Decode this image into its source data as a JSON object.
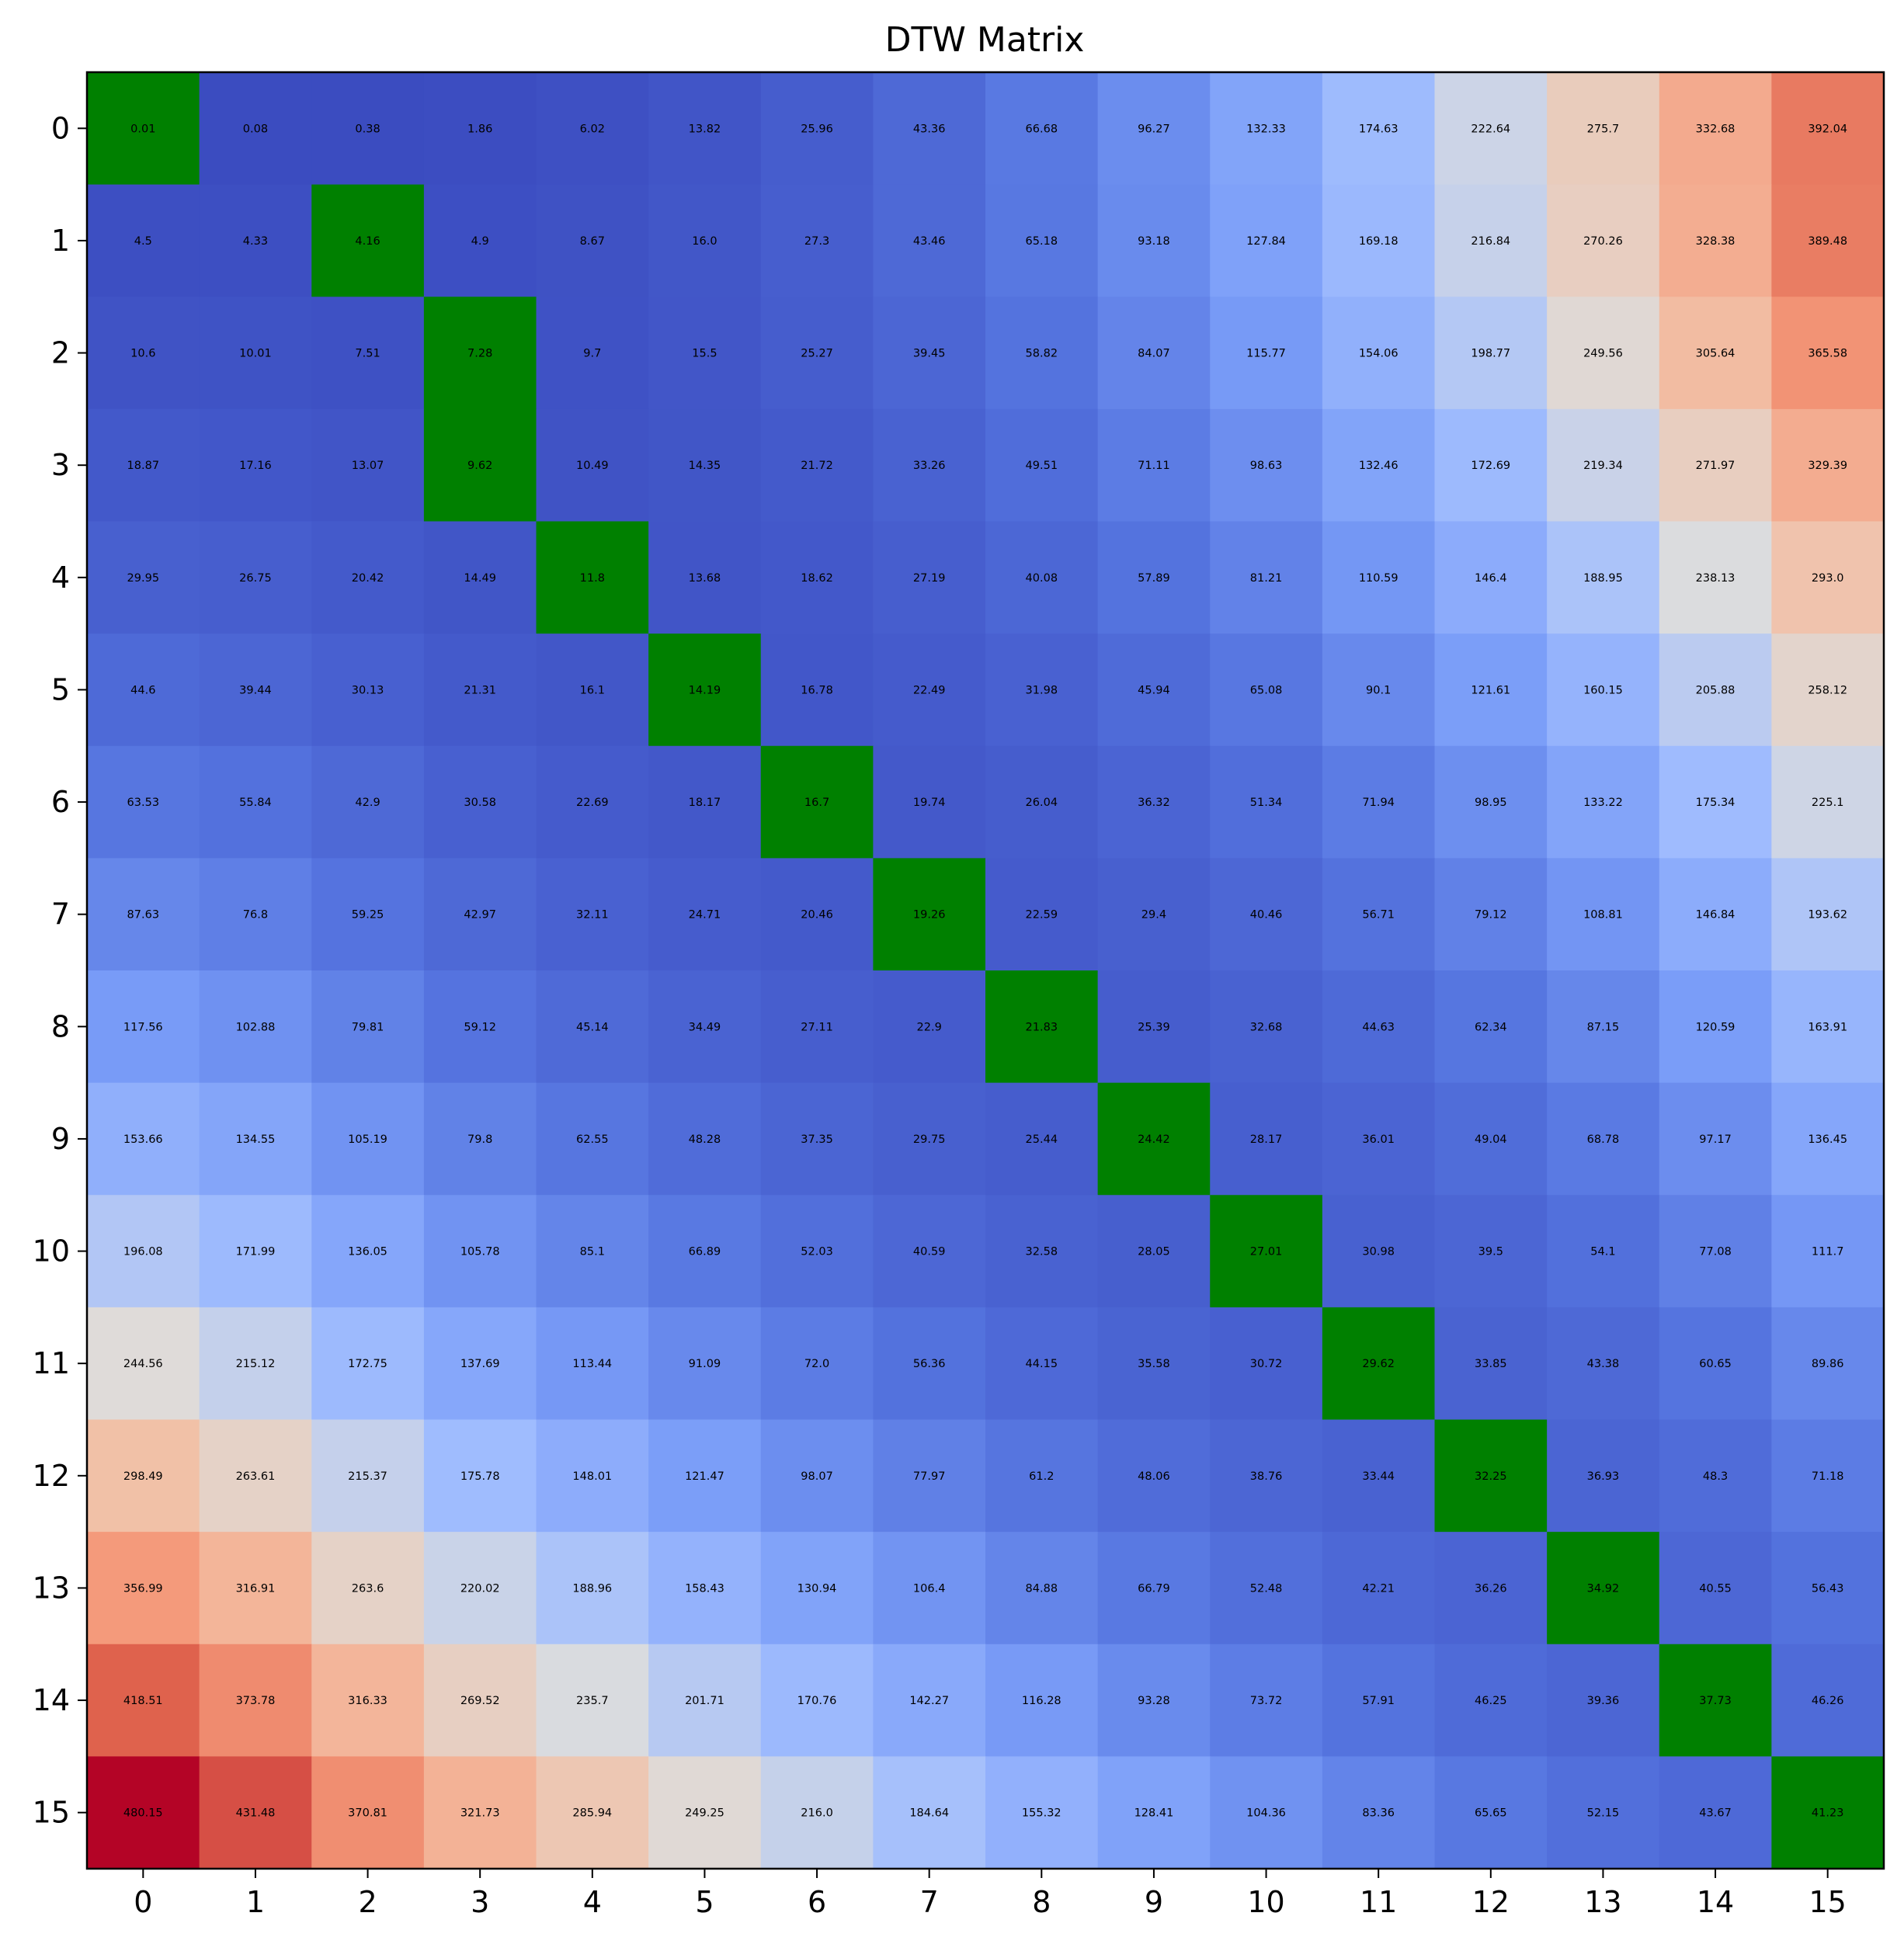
{
  "chart_data": {
    "type": "heatmap",
    "title": "DTW Matrix",
    "xlabel": "",
    "ylabel": "",
    "x_ticks": [
      "0",
      "1",
      "2",
      "3",
      "4",
      "5",
      "6",
      "7",
      "8",
      "9",
      "10",
      "11",
      "12",
      "13",
      "14",
      "15"
    ],
    "y_ticks": [
      "0",
      "1",
      "2",
      "3",
      "4",
      "5",
      "6",
      "7",
      "8",
      "9",
      "10",
      "11",
      "12",
      "13",
      "14",
      "15"
    ],
    "colormap": "coolwarm",
    "path_color": "#008000",
    "value_range": [
      0.01,
      480.15
    ],
    "grid": false,
    "legend": "none",
    "warping_path": [
      [
        0,
        0
      ],
      [
        1,
        2
      ],
      [
        2,
        3
      ],
      [
        3,
        3
      ],
      [
        4,
        4
      ],
      [
        5,
        5
      ],
      [
        6,
        6
      ],
      [
        7,
        7
      ],
      [
        8,
        8
      ],
      [
        9,
        9
      ],
      [
        10,
        10
      ],
      [
        11,
        11
      ],
      [
        12,
        12
      ],
      [
        13,
        13
      ],
      [
        14,
        14
      ],
      [
        15,
        15
      ]
    ],
    "values": [
      [
        "0.01",
        "0.08",
        "0.38",
        "1.86",
        "6.02",
        "13.82",
        "25.96",
        "43.36",
        "66.68",
        "96.27",
        "132.33",
        "174.63",
        "222.64",
        "275.7",
        "332.68",
        "392.04"
      ],
      [
        "4.5",
        "4.33",
        "4.16",
        "4.9",
        "8.67",
        "16.0",
        "27.3",
        "43.46",
        "65.18",
        "93.18",
        "127.84",
        "169.18",
        "216.84",
        "270.26",
        "328.38",
        "389.48"
      ],
      [
        "10.6",
        "10.01",
        "7.51",
        "7.28",
        "9.7",
        "15.5",
        "25.27",
        "39.45",
        "58.82",
        "84.07",
        "115.77",
        "154.06",
        "198.77",
        "249.56",
        "305.64",
        "365.58"
      ],
      [
        "18.87",
        "17.16",
        "13.07",
        "9.62",
        "10.49",
        "14.35",
        "21.72",
        "33.26",
        "49.51",
        "71.11",
        "98.63",
        "132.46",
        "172.69",
        "219.34",
        "271.97",
        "329.39"
      ],
      [
        "29.95",
        "26.75",
        "20.42",
        "14.49",
        "11.8",
        "13.68",
        "18.62",
        "27.19",
        "40.08",
        "57.89",
        "81.21",
        "110.59",
        "146.4",
        "188.95",
        "238.13",
        "293.0"
      ],
      [
        "44.6",
        "39.44",
        "30.13",
        "21.31",
        "16.1",
        "14.19",
        "16.78",
        "22.49",
        "31.98",
        "45.94",
        "65.08",
        "90.1",
        "121.61",
        "160.15",
        "205.88",
        "258.12"
      ],
      [
        "63.53",
        "55.84",
        "42.9",
        "30.58",
        "22.69",
        "18.17",
        "16.7",
        "19.74",
        "26.04",
        "36.32",
        "51.34",
        "71.94",
        "98.95",
        "133.22",
        "175.34",
        "225.1"
      ],
      [
        "87.63",
        "76.8",
        "59.25",
        "42.97",
        "32.11",
        "24.71",
        "20.46",
        "19.26",
        "22.59",
        "29.4",
        "40.46",
        "56.71",
        "79.12",
        "108.81",
        "146.84",
        "193.62"
      ],
      [
        "117.56",
        "102.88",
        "79.81",
        "59.12",
        "45.14",
        "34.49",
        "27.11",
        "22.9",
        "21.83",
        "25.39",
        "32.68",
        "44.63",
        "62.34",
        "87.15",
        "120.59",
        "163.91"
      ],
      [
        "153.66",
        "134.55",
        "105.19",
        "79.8",
        "62.55",
        "48.28",
        "37.35",
        "29.75",
        "25.44",
        "24.42",
        "28.17",
        "36.01",
        "49.04",
        "68.78",
        "97.17",
        "136.45"
      ],
      [
        "196.08",
        "171.99",
        "136.05",
        "105.78",
        "85.1",
        "66.89",
        "52.03",
        "40.59",
        "32.58",
        "28.05",
        "27.01",
        "30.98",
        "39.5",
        "54.1",
        "77.08",
        "111.7"
      ],
      [
        "244.56",
        "215.12",
        "172.75",
        "137.69",
        "113.44",
        "91.09",
        "72.0",
        "56.36",
        "44.15",
        "35.58",
        "30.72",
        "29.62",
        "33.85",
        "43.38",
        "60.65",
        "89.86"
      ],
      [
        "298.49",
        "263.61",
        "215.37",
        "175.78",
        "148.01",
        "121.47",
        "98.07",
        "77.97",
        "61.2",
        "48.06",
        "38.76",
        "33.44",
        "32.25",
        "36.93",
        "48.3",
        "71.18"
      ],
      [
        "356.99",
        "316.91",
        "263.6",
        "220.02",
        "188.96",
        "158.43",
        "130.94",
        "106.4",
        "84.88",
        "66.79",
        "52.48",
        "42.21",
        "36.26",
        "34.92",
        "40.55",
        "56.43"
      ],
      [
        "418.51",
        "373.78",
        "316.33",
        "269.52",
        "235.7",
        "201.71",
        "170.76",
        "142.27",
        "116.28",
        "93.28",
        "73.72",
        "57.91",
        "46.25",
        "39.36",
        "37.73",
        "46.26"
      ],
      [
        "480.15",
        "431.48",
        "370.81",
        "321.73",
        "285.94",
        "249.25",
        "216.0",
        "184.64",
        "155.32",
        "128.41",
        "104.36",
        "83.36",
        "65.65",
        "52.15",
        "43.67",
        "41.23"
      ]
    ]
  }
}
